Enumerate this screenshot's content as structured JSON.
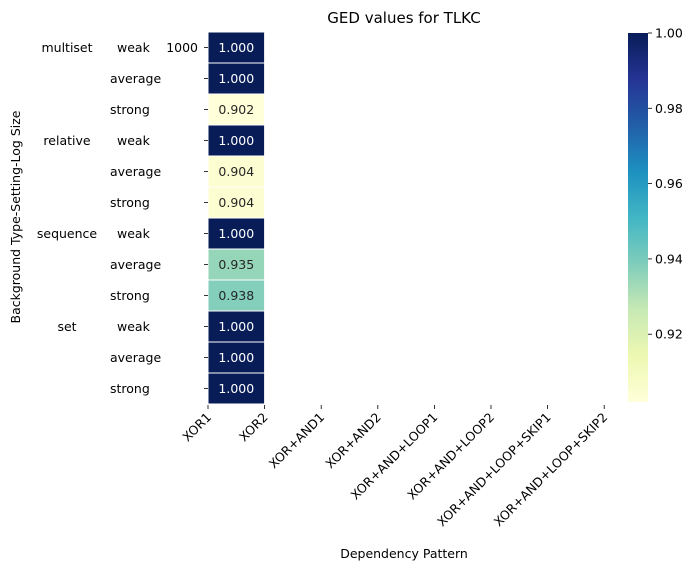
{
  "chart_data": {
    "type": "heatmap",
    "title": "GED values for TLKC",
    "xlabel": "Dependency Pattern",
    "ylabel": "Background Type-Setting-Log Size",
    "columns": [
      "XOR1",
      "XOR2",
      "XOR+AND1",
      "XOR+AND2",
      "XOR+AND+LOOP1",
      "XOR+AND+LOOP2",
      "XOR+AND+LOOP+SKIP1",
      "XOR+AND+LOOP+SKIP2"
    ],
    "rows": [
      {
        "group": "multiset",
        "setting": "weak",
        "size": "1000"
      },
      {
        "group": "",
        "setting": "average",
        "size": ""
      },
      {
        "group": "",
        "setting": "strong",
        "size": ""
      },
      {
        "group": "relative",
        "setting": "weak",
        "size": ""
      },
      {
        "group": "",
        "setting": "average",
        "size": ""
      },
      {
        "group": "",
        "setting": "strong",
        "size": ""
      },
      {
        "group": "sequence",
        "setting": "weak",
        "size": ""
      },
      {
        "group": "",
        "setting": "average",
        "size": ""
      },
      {
        "group": "",
        "setting": "strong",
        "size": ""
      },
      {
        "group": "set",
        "setting": "weak",
        "size": ""
      },
      {
        "group": "",
        "setting": "average",
        "size": ""
      },
      {
        "group": "",
        "setting": "strong",
        "size": ""
      }
    ],
    "values": [
      [
        1.0,
        null,
        null,
        null,
        null,
        null,
        null,
        null
      ],
      [
        1.0,
        null,
        null,
        null,
        null,
        null,
        null,
        null
      ],
      [
        0.902,
        null,
        null,
        null,
        null,
        null,
        null,
        null
      ],
      [
        1.0,
        null,
        null,
        null,
        null,
        null,
        null,
        null
      ],
      [
        0.904,
        null,
        null,
        null,
        null,
        null,
        null,
        null
      ],
      [
        0.904,
        null,
        null,
        null,
        null,
        null,
        null,
        null
      ],
      [
        1.0,
        null,
        null,
        null,
        null,
        null,
        null,
        null
      ],
      [
        0.935,
        null,
        null,
        null,
        null,
        null,
        null,
        null
      ],
      [
        0.938,
        null,
        null,
        null,
        null,
        null,
        null,
        null
      ],
      [
        1.0,
        null,
        null,
        null,
        null,
        null,
        null,
        null
      ],
      [
        1.0,
        null,
        null,
        null,
        null,
        null,
        null,
        null
      ],
      [
        1.0,
        null,
        null,
        null,
        null,
        null,
        null,
        null
      ]
    ],
    "value_labels": [
      "1.000",
      "1.000",
      "0.902",
      "1.000",
      "0.904",
      "0.904",
      "1.000",
      "0.935",
      "0.938",
      "1.000",
      "1.000",
      "1.000"
    ],
    "colormap": "YlGnBu",
    "colorbar": {
      "range": [
        0.902,
        1.0
      ],
      "ticks": [
        0.92,
        0.94,
        0.96,
        0.98,
        1.0
      ],
      "tick_labels": [
        "0.92",
        "0.94",
        "0.96",
        "0.98",
        "1.00"
      ]
    }
  }
}
